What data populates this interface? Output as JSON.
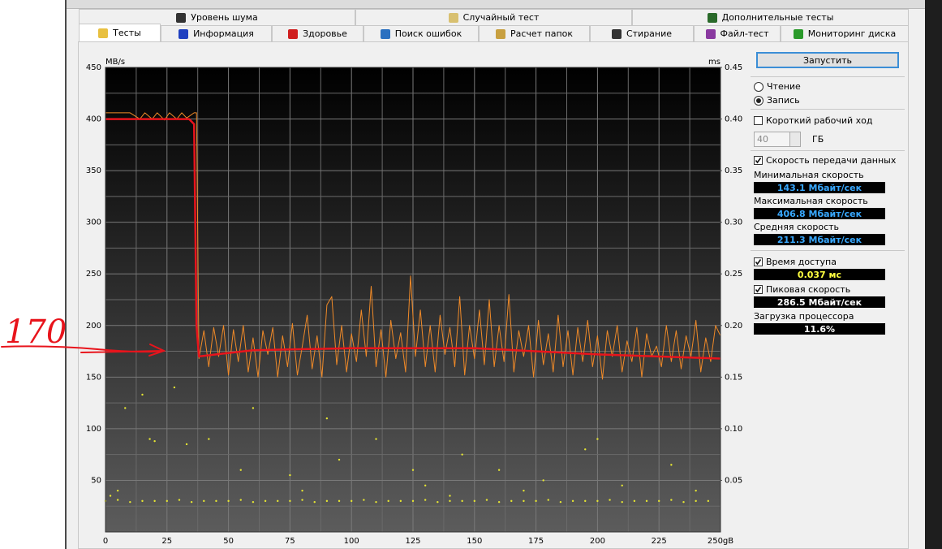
{
  "tabs": {
    "row1": [
      "Уровень шума",
      "Случайный тест",
      "Дополнительные тесты"
    ],
    "row2": [
      "Тесты",
      "Информация",
      "Здоровье",
      "Поиск ошибок",
      "Расчет папок",
      "Стирание",
      "Файл-тест",
      "Мониторинг диска"
    ],
    "active": 0
  },
  "chart_data": {
    "type": "line",
    "ylabel": "MB/s",
    "y2label": "ms",
    "annotation": "170",
    "xlim": [
      0,
      250
    ],
    "xticks": [
      0,
      25,
      50,
      75,
      100,
      125,
      150,
      175,
      200,
      225,
      {
        "value": 250,
        "label": "250gB"
      }
    ],
    "ylim": [
      0,
      450
    ],
    "yticks": [
      50,
      100,
      150,
      200,
      250,
      300,
      350,
      400,
      450
    ],
    "y2lim": [
      0,
      0.45
    ],
    "y2ticks": [
      0.05,
      {
        "value": 0.1,
        "label": "0.10"
      },
      0.15,
      {
        "value": 0.2,
        "label": "0.20"
      },
      0.25,
      {
        "value": 0.3,
        "label": "0.30"
      },
      0.35,
      {
        "value": 0.4,
        "label": "0.40"
      },
      0.45
    ],
    "grid": true,
    "minor_grid": true,
    "series": [
      {
        "type": "line",
        "color": "#f08a28",
        "x": [
          0,
          5,
          10,
          14,
          16,
          19,
          21,
          24,
          26,
          29,
          31,
          33,
          36,
          37,
          38,
          40,
          42,
          44,
          46,
          48,
          50,
          52,
          54,
          56,
          58,
          60,
          62,
          64,
          66,
          68,
          70,
          72,
          74,
          76,
          78,
          80,
          82,
          84,
          86,
          88,
          90,
          92,
          94,
          96,
          98,
          100,
          102,
          104,
          106,
          108,
          110,
          112,
          114,
          116,
          118,
          120,
          122,
          124,
          126,
          128,
          130,
          132,
          134,
          136,
          138,
          140,
          142,
          144,
          146,
          148,
          150,
          152,
          154,
          156,
          158,
          160,
          162,
          164,
          166,
          168,
          170,
          172,
          174,
          176,
          178,
          180,
          182,
          184,
          186,
          188,
          190,
          192,
          194,
          196,
          198,
          200,
          202,
          204,
          206,
          208,
          210,
          212,
          214,
          216,
          218,
          220,
          222,
          224,
          226,
          228,
          230,
          232,
          234,
          236,
          238,
          240,
          242,
          244,
          246,
          248,
          250
        ],
        "values": [
          406,
          406,
          406,
          400,
          406,
          400,
          406,
          399,
          406,
          400,
          406,
          401,
          406,
          406,
          168,
          195,
          160,
          198,
          170,
          200,
          152,
          196,
          165,
          200,
          155,
          188,
          150,
          195,
          172,
          198,
          150,
          190,
          160,
          202,
          152,
          180,
          210,
          158,
          190,
          150,
          220,
          228,
          162,
          200,
          155,
          192,
          165,
          215,
          170,
          238,
          160,
          196,
          150,
          205,
          168,
          193,
          155,
          248,
          170,
          215,
          160,
          200,
          155,
          210,
          172,
          198,
          160,
          228,
          152,
          200,
          168,
          215,
          162,
          225,
          160,
          200,
          165,
          230,
          155,
          195,
          170,
          200,
          150,
          205,
          162,
          192,
          155,
          210,
          160,
          195,
          152,
          198,
          165,
          205,
          160,
          190,
          148,
          195,
          170,
          200,
          155,
          185,
          165,
          198,
          150,
          192,
          170,
          180,
          160,
          200,
          165,
          195,
          158,
          190,
          170,
          205,
          155,
          188,
          165,
          200,
          190
        ]
      },
      {
        "type": "scatter",
        "axis": "y2",
        "color": "#e6e632",
        "x": [
          0,
          5,
          10,
          15,
          20,
          25,
          30,
          35,
          40,
          45,
          50,
          55,
          60,
          65,
          70,
          75,
          80,
          85,
          90,
          95,
          100,
          105,
          110,
          115,
          120,
          125,
          130,
          135,
          140,
          145,
          150,
          155,
          160,
          165,
          170,
          175,
          180,
          185,
          190,
          195,
          200,
          205,
          210,
          215,
          220,
          225,
          230,
          235,
          240,
          245,
          2,
          5,
          8,
          15,
          18,
          20,
          28,
          42,
          55,
          60,
          75,
          80,
          90,
          95,
          110,
          125,
          130,
          145,
          160,
          170,
          178,
          195,
          210,
          230,
          240,
          33,
          140,
          200
        ],
        "values": [
          0.03,
          0.031,
          0.029,
          0.03,
          0.03,
          0.03,
          0.031,
          0.029,
          0.03,
          0.03,
          0.03,
          0.031,
          0.029,
          0.03,
          0.03,
          0.03,
          0.031,
          0.029,
          0.03,
          0.03,
          0.03,
          0.031,
          0.029,
          0.03,
          0.03,
          0.03,
          0.031,
          0.029,
          0.03,
          0.03,
          0.03,
          0.031,
          0.029,
          0.03,
          0.03,
          0.03,
          0.031,
          0.029,
          0.03,
          0.03,
          0.03,
          0.031,
          0.029,
          0.03,
          0.03,
          0.03,
          0.031,
          0.029,
          0.03,
          0.03,
          0.035,
          0.04,
          0.12,
          0.133,
          0.09,
          0.088,
          0.14,
          0.09,
          0.06,
          0.12,
          0.055,
          0.04,
          0.11,
          0.07,
          0.09,
          0.06,
          0.045,
          0.075,
          0.06,
          0.04,
          0.05,
          0.08,
          0.045,
          0.065,
          0.04,
          0.085,
          0.035,
          0.09
        ]
      },
      {
        "type": "line",
        "color": "#e8141c",
        "x": [
          0,
          34,
          36,
          37,
          38,
          45,
          60,
          100,
          150,
          200,
          250
        ],
        "values": [
          400,
          400,
          395,
          200,
          170,
          172,
          176,
          178,
          178,
          172,
          168
        ]
      }
    ]
  },
  "panel": {
    "start": "Запустить",
    "read": {
      "label": "Чтение",
      "checked": false
    },
    "write": {
      "label": "Запись",
      "checked": true
    },
    "short_stroke": {
      "label": "Короткий рабочий ход",
      "checked": false,
      "size": "40",
      "unit": "ГБ"
    },
    "transfer": {
      "label": "Скорость передачи данных",
      "checked": true
    },
    "stats": [
      {
        "label": "Минимальная скорость",
        "value": "143.1 Мбайт/сек",
        "color": "#38a8ff"
      },
      {
        "label": "Максимальная скорость",
        "value": "406.8 Мбайт/сек",
        "color": "#38a8ff"
      },
      {
        "label": "Средняя скорость",
        "value": "211.3 Мбайт/сек",
        "color": "#38a8ff"
      }
    ],
    "access": {
      "label": "Время доступа",
      "checked": true,
      "value": "0.037 мс",
      "color": "#ffff40"
    },
    "burst": {
      "label": "Пиковая скорость",
      "checked": true,
      "value": "286.5 Мбайт/сек",
      "color": "#ffffff"
    },
    "cpu": {
      "label": "Загрузка процессора",
      "value": "11.6%",
      "color": "#ffffff"
    }
  }
}
